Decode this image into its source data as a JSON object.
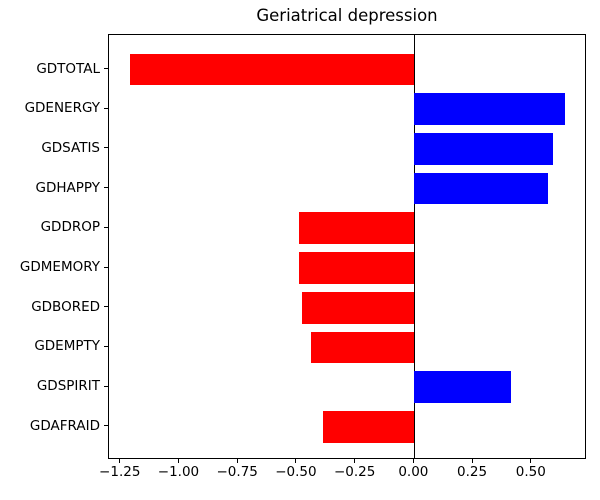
{
  "chart_data": {
    "type": "bar",
    "orientation": "horizontal",
    "title": "Geriatrical depression",
    "categories": [
      "GDTOTAL",
      "GDENERGY",
      "GDSATIS",
      "GDHAPPY",
      "GDDROP",
      "GDMEMORY",
      "GDBORED",
      "GDEMPTY",
      "GDSPIRIT",
      "GDAFRAID"
    ],
    "values": [
      -1.21,
      0.64,
      0.59,
      0.57,
      -0.49,
      -0.49,
      -0.48,
      -0.44,
      0.41,
      -0.39
    ],
    "xlabel": "",
    "ylabel": "",
    "xlim": [
      -1.3,
      0.735
    ],
    "x_ticks": [
      -1.25,
      -1.0,
      -0.75,
      -0.5,
      -0.25,
      0.0,
      0.25,
      0.5
    ],
    "x_tick_labels": [
      "−1.25",
      "−1.00",
      "−0.75",
      "−0.50",
      "−0.25",
      "0.00",
      "0.25",
      "0.50"
    ],
    "positive_color": "#0000ff",
    "negative_color": "#ff0000",
    "zero_line": true,
    "grid": false,
    "legend": null
  }
}
